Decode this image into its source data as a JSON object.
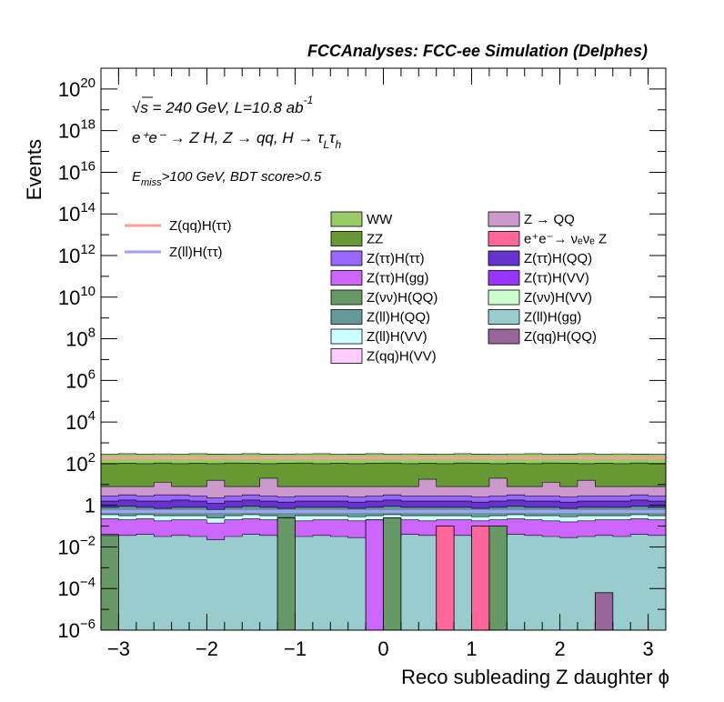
{
  "header": "FCCAnalyses: FCC-ee Simulation (Delphes)",
  "annotations": {
    "line1_sqrt": "√s = 240 GeV, L=10.8 ab",
    "line1_sup": "-1",
    "line2": "e⁺e⁻ → Z H, Z  → qq, H  → τ",
    "line2_sub1": "L",
    "line2_tau2": "τ",
    "line2_sub2": "h",
    "line3_E": "E",
    "line3_sub": "miss",
    "line3_rest": ">100 GeV, BDT score>0.5"
  },
  "chart_data": {
    "type": "stacked-histogram",
    "xlabel": "Reco subleading Z daughter ϕ",
    "ylabel": "Events",
    "xlim": [
      -3.2,
      3.2
    ],
    "ylim": [
      1e-06,
      1e+21
    ],
    "log_y": true,
    "bins": 32,
    "x_ticks": [
      "−3",
      "−2",
      "−1",
      "0",
      "1",
      "2",
      "3"
    ],
    "x_tick_values": [
      -3,
      -2,
      -1,
      0,
      1,
      2,
      3
    ],
    "y_ticks": [
      {
        "v": 1e-06,
        "base": "10",
        "exp": "−6"
      },
      {
        "v": 0.0001,
        "base": "10",
        "exp": "−4"
      },
      {
        "v": 0.01,
        "base": "10",
        "exp": "−2"
      },
      {
        "v": 1,
        "base": "1",
        "exp": ""
      },
      {
        "v": 100.0,
        "base": "10",
        "exp": "2"
      },
      {
        "v": 10000.0,
        "base": "10",
        "exp": "4"
      },
      {
        "v": 1000000.0,
        "base": "10",
        "exp": "6"
      },
      {
        "v": 100000000.0,
        "base": "10",
        "exp": "8"
      },
      {
        "v": 10000000000.0,
        "base": "10",
        "exp": "10"
      },
      {
        "v": 1000000000000.0,
        "base": "10",
        "exp": "12"
      },
      {
        "v": 100000000000000.0,
        "base": "10",
        "exp": "14"
      },
      {
        "v": 1e+16,
        "base": "10",
        "exp": "16"
      },
      {
        "v": 1e+18,
        "base": "10",
        "exp": "18"
      },
      {
        "v": 1e+20,
        "base": "10",
        "exp": "20"
      }
    ],
    "stack_boundaries_log10": {
      "Z(ll)H(gg)": [
        -1.4,
        -1.45,
        -1.4,
        -1.5,
        -1.45,
        -1.5,
        -1.65,
        -1.5,
        -1.4,
        -1.45,
        -1.55,
        -1.5,
        -1.45,
        -1.5,
        -1.55,
        -1.45,
        -1.5,
        -1.4,
        -1.45,
        -1.5,
        -1.45,
        -1.55,
        -1.5,
        -1.4,
        -1.45,
        -1.5,
        -1.55,
        -1.5,
        -1.45,
        -1.5,
        -1.4,
        -1.45
      ],
      "Z(ττ)H(gg)": [
        -0.65,
        -0.7,
        -0.65,
        -0.75,
        -0.7,
        -0.7,
        -0.85,
        -0.7,
        -0.65,
        -0.7,
        -0.8,
        -0.75,
        -0.7,
        -0.7,
        -0.75,
        -0.7,
        -0.65,
        -0.7,
        -0.75,
        -0.7,
        -0.7,
        -0.75,
        -0.7,
        -0.65,
        -0.7,
        -0.75,
        -0.8,
        -0.75,
        -0.7,
        -0.7,
        -0.65,
        -0.7
      ],
      "Z(ll)H(VV)": [
        -0.45,
        -0.5,
        -0.45,
        -0.5,
        -0.5,
        -0.5,
        -0.6,
        -0.5,
        -0.45,
        -0.5,
        -0.55,
        -0.5,
        -0.5,
        -0.5,
        -0.55,
        -0.5,
        -0.45,
        -0.5,
        -0.5,
        -0.5,
        -0.5,
        -0.55,
        -0.5,
        -0.45,
        -0.5,
        -0.5,
        -0.55,
        -0.5,
        -0.5,
        -0.5,
        -0.45,
        -0.5
      ],
      "Z(ll)H(QQ)": [
        -0.1,
        -0.05,
        -0.1,
        -0.15,
        -0.1,
        -0.1,
        -0.2,
        -0.1,
        -0.05,
        -0.1,
        -0.15,
        -0.1,
        -0.1,
        -0.1,
        -0.15,
        -0.1,
        -0.05,
        -0.1,
        -0.1,
        -0.1,
        -0.1,
        -0.15,
        -0.1,
        -0.05,
        -0.1,
        -0.1,
        -0.15,
        -0.1,
        -0.1,
        -0.1,
        -0.05,
        -0.1
      ],
      "Z(ττ)H(QQ)": [
        0.2,
        0.25,
        0.2,
        0.2,
        0.25,
        0.2,
        0.1,
        0.2,
        0.25,
        0.2,
        0.15,
        0.2,
        0.2,
        0.2,
        0.15,
        0.2,
        0.25,
        0.2,
        0.2,
        0.2,
        0.2,
        0.15,
        0.2,
        0.25,
        0.2,
        0.2,
        0.15,
        0.2,
        0.2,
        0.2,
        0.25,
        0.2
      ],
      "Z(ττ)H(ττ)": [
        0.45,
        0.5,
        0.45,
        0.5,
        0.5,
        0.45,
        0.35,
        0.45,
        0.5,
        0.45,
        0.4,
        0.45,
        0.45,
        0.45,
        0.4,
        0.45,
        0.5,
        0.45,
        0.45,
        0.45,
        0.45,
        0.4,
        0.45,
        0.5,
        0.45,
        0.45,
        0.4,
        0.45,
        0.45,
        0.45,
        0.5,
        0.45
      ],
      "Z→QQ": [
        0.9,
        0.9,
        0.9,
        1.1,
        0.9,
        0.9,
        1.2,
        0.9,
        0.9,
        1.3,
        0.9,
        0.9,
        0.9,
        0.9,
        0.9,
        0.9,
        0.9,
        0.9,
        1.25,
        0.9,
        0.9,
        0.9,
        1.3,
        0.9,
        0.9,
        1.1,
        0.9,
        1.2,
        0.9,
        0.9,
        0.9,
        0.9
      ],
      "ZZ": [
        2.0,
        2.02,
        2.0,
        2.03,
        2.0,
        2.02,
        2.0,
        2.03,
        2.02,
        2.0,
        2.02,
        2.03,
        2.0,
        2.02,
        2.0,
        2.02,
        2.03,
        2.0,
        2.02,
        2.0,
        2.03,
        2.02,
        2.0,
        2.02,
        2.0,
        2.03,
        2.02,
        2.0,
        2.02,
        2.0,
        2.03,
        2.0
      ],
      "WW": [
        2.45,
        2.48,
        2.45,
        2.47,
        2.45,
        2.48,
        2.46,
        2.45,
        2.48,
        2.46,
        2.45,
        2.47,
        2.48,
        2.45,
        2.46,
        2.48,
        2.45,
        2.47,
        2.46,
        2.45,
        2.48,
        2.46,
        2.45,
        2.47,
        2.48,
        2.45,
        2.46,
        2.48,
        2.45,
        2.47,
        2.46,
        2.45
      ]
    },
    "isolated_bins": [
      {
        "name": "Z(νν)H(QQ)",
        "bin": 0,
        "log10": -1.45
      },
      {
        "name": "Z(νν)H(QQ)",
        "bin": 10,
        "log10": -0.6
      },
      {
        "name": "Z(ττ)H(gg)",
        "bin": 15,
        "log10": -0.7
      },
      {
        "name": "Z(νν)H(QQ)",
        "bin": 16,
        "log10": -0.6
      },
      {
        "name": "e⁺e⁻ → νₑνₑ Z",
        "bin": 19,
        "log10": -1.0
      },
      {
        "name": "e⁺e⁻ → νₑνₑ Z",
        "bin": 21,
        "log10": -1.0
      },
      {
        "name": "Z(νν)H(QQ)",
        "bin": 22,
        "log10": -1.0
      },
      {
        "name": "Z(qq)H(QQ)",
        "bin": 28,
        "log10": -4.2
      }
    ],
    "signal_lines_log10": {
      "Z(qq)H(ττ)": 2.28,
      "Z(ll)H(ττ)": -0.3
    },
    "legend_left": [
      {
        "name": "Z(qq)H(ττ)",
        "color": "#f4a09c",
        "kind": "line"
      },
      {
        "name": "Z(ll)H(ττ)",
        "color": "#a0a0ff",
        "kind": "line"
      }
    ],
    "legend_col1": [
      {
        "name": "WW",
        "color": "#99cc66"
      },
      {
        "name": "ZZ",
        "color": "#669933"
      },
      {
        "name": "Z(ττ)H(ττ)",
        "color": "#9966ff"
      },
      {
        "name": "Z(ττ)H(gg)",
        "color": "#cc66ff"
      },
      {
        "name": "Z(νν)H(QQ)",
        "color": "#669966"
      },
      {
        "name": "Z(ll)H(QQ)",
        "color": "#669999"
      },
      {
        "name": "Z(ll)H(VV)",
        "color": "#ccffff"
      },
      {
        "name": "Z(qq)H(VV)",
        "color": "#ffccff"
      }
    ],
    "legend_col2": [
      {
        "name": "Z → QQ",
        "color": "#cc99cc"
      },
      {
        "name": "e⁺e⁻→ νₑνₑ Z",
        "color": "#ff6699"
      },
      {
        "name": "Z(ττ)H(QQ)",
        "color": "#6633cc"
      },
      {
        "name": "Z(ττ)H(VV)",
        "color": "#9933ff"
      },
      {
        "name": "Z(νν)H(VV)",
        "color": "#ccffcc"
      },
      {
        "name": "Z(ll)H(gg)",
        "color": "#99cccc"
      },
      {
        "name": "Z(qq)H(QQ)",
        "color": "#996699"
      }
    ],
    "stack_colors": {
      "Z(ll)H(gg)": "#99cccc",
      "Z(ττ)H(gg)": "#cc66ff",
      "Z(ll)H(VV)": "#ccffff",
      "Z(ll)H(QQ)": "#669999",
      "Z(ττ)H(QQ)": "#6633cc",
      "Z(ττ)H(ττ)": "#9966ff",
      "Z→QQ": "#cc99cc",
      "ZZ": "#669933",
      "WW": "#99cc66",
      "Z(νν)H(QQ)": "#669966",
      "e⁺e⁻ → νₑνₑ Z": "#ff6699",
      "Z(qq)H(QQ)": "#996699"
    }
  }
}
